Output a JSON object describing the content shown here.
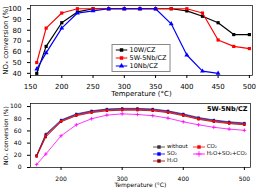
{
  "chart_data": [
    {
      "type": "line",
      "xlabel": "Temperature (°C)",
      "ylabel": "NOₓ conversion (%)",
      "x": [
        160,
        175,
        200,
        225,
        250,
        275,
        300,
        325,
        350,
        375,
        400,
        425,
        450,
        475,
        500
      ],
      "series": [
        {
          "name": "10W/CZ",
          "color": "black",
          "marker": "square",
          "values": [
            40,
            65,
            87,
            97,
            100,
            100,
            100,
            100,
            100,
            100,
            98,
            93,
            87,
            76,
            76
          ]
        },
        {
          "name": "5W-5Nb/CZ",
          "color": "red",
          "marker": "square",
          "values": [
            50,
            82,
            96,
            100,
            100,
            100,
            100,
            100,
            100,
            100,
            100,
            96,
            71,
            65,
            63
          ]
        },
        {
          "name": "10Nb/CZ",
          "color": "blue",
          "marker": "triangle",
          "values": [
            44,
            59,
            82,
            96,
            98,
            100,
            100,
            100,
            100,
            86,
            57,
            42,
            40,
            null,
            null
          ]
        }
      ],
      "xlim": [
        150,
        505
      ],
      "ylim": [
        38,
        103
      ],
      "xticks": [
        150,
        200,
        250,
        300,
        350,
        400,
        450,
        500
      ],
      "yticks": [
        40,
        50,
        60,
        70,
        80,
        90,
        100
      ],
      "grid": false,
      "legend": "lower center"
    },
    {
      "type": "line",
      "title": "5W-5Nb/CZ",
      "xlabel": "Temperature (°C)",
      "ylabel": "NOₓ conversion (%)",
      "x": [
        160,
        175,
        200,
        225,
        250,
        275,
        300,
        325,
        350,
        375,
        400,
        425,
        450,
        475,
        500
      ],
      "series": [
        {
          "name": "without",
          "color": "#333333",
          "marker": "square",
          "values": [
            20,
            55,
            78,
            88,
            93,
            96,
            97,
            97,
            96,
            93,
            88,
            82,
            78,
            75,
            73
          ]
        },
        {
          "name": "SO₂",
          "color": "blue",
          "marker": "square",
          "values": [
            19,
            53,
            77,
            87,
            92,
            95,
            96,
            96,
            95,
            92,
            87,
            81,
            77,
            74,
            72
          ]
        },
        {
          "name": "H₂O",
          "color": "#880000",
          "marker": "square",
          "values": [
            18,
            50,
            75,
            85,
            90,
            93,
            94,
            94,
            93,
            90,
            85,
            79,
            75,
            72,
            70
          ]
        },
        {
          "name": "CO₂",
          "color": "red",
          "marker": "square",
          "values": [
            19,
            52,
            76,
            86,
            91,
            94,
            95,
            95,
            94,
            91,
            86,
            80,
            76,
            73,
            71
          ]
        },
        {
          "name": "H₂O+SO₂+CO₂",
          "color": "magenta",
          "marker": "plus",
          "values": [
            5,
            22,
            52,
            70,
            80,
            86,
            88,
            87,
            85,
            81,
            75,
            70,
            66,
            63,
            61
          ]
        }
      ],
      "xlim": [
        150,
        510
      ],
      "ylim": [
        0,
        105
      ],
      "xticks": [
        200,
        300,
        400,
        500
      ],
      "yticks": [
        0,
        20,
        40,
        60,
        80,
        100
      ],
      "grid": false,
      "legend": "lower right"
    }
  ]
}
